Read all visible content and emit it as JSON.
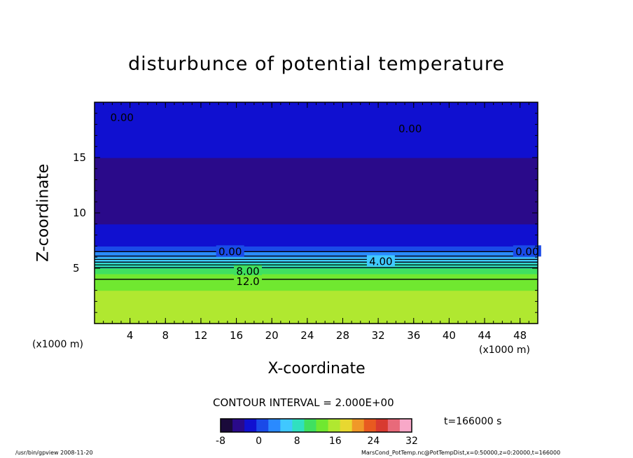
{
  "chart_data": {
    "type": "heatmap",
    "title": "disturbunce of potential temperature",
    "xlabel": "X-coordinate",
    "ylabel": "Z-coordinate",
    "x_unit": "(x1000 m)",
    "xlim": [
      0,
      50
    ],
    "ylim": [
      0,
      20
    ],
    "xticks": [
      4,
      8,
      12,
      16,
      20,
      24,
      28,
      32,
      36,
      40,
      44,
      48
    ],
    "yticks": [
      5,
      10,
      15
    ],
    "contour_interval_label": "CONTOUR INTERVAL = 2.000E+00",
    "contour_interval": 2.0,
    "contour_labels": [
      {
        "text": "0.00",
        "x": 3.1,
        "z": 18.6
      },
      {
        "text": "0.00",
        "x": 35.6,
        "z": 17.6
      },
      {
        "text": "0.00",
        "x": 15.3,
        "z": 6.5
      },
      {
        "text": "0.00",
        "x": 48.8,
        "z": 6.5
      },
      {
        "text": "4.00",
        "x": 32.3,
        "z": 5.6
      },
      {
        "text": "8.00",
        "x": 17.3,
        "z": 4.7
      },
      {
        "text": "12.0",
        "x": 17.3,
        "z": 3.8
      }
    ],
    "vertical_profile": [
      {
        "z": 0,
        "value": 16
      },
      {
        "z": 4,
        "value": 14
      },
      {
        "z": 5,
        "value": 9
      },
      {
        "z": 6,
        "value": 4
      },
      {
        "z": 7,
        "value": -1
      },
      {
        "z": 9,
        "value": -3
      },
      {
        "z": 12,
        "value": -4
      },
      {
        "z": 15,
        "value": -3
      },
      {
        "z": 17,
        "value": -1
      },
      {
        "z": 20,
        "value": -2
      }
    ],
    "colorbar": {
      "min": -8,
      "max": 32,
      "ticks": [
        "-8",
        "0",
        "8",
        "16",
        "24",
        "32"
      ],
      "colors": [
        "#1a0a3a",
        "#2a0a8a",
        "#1010d0",
        "#1a4ae8",
        "#2a8aff",
        "#40c8ff",
        "#30e0c0",
        "#40e060",
        "#70e830",
        "#b0e830",
        "#e8d830",
        "#f09828",
        "#e85a20",
        "#d83a30",
        "#e86a7a",
        "#f8a8c8"
      ]
    },
    "time_label": "t=166000 s"
  },
  "footer": {
    "left": "/usr/bin/gpview   2008-11-20",
    "right": "MarsCond_PotTemp.nc@PotTempDist,x=0:50000,z=0:20000,t=166000"
  }
}
